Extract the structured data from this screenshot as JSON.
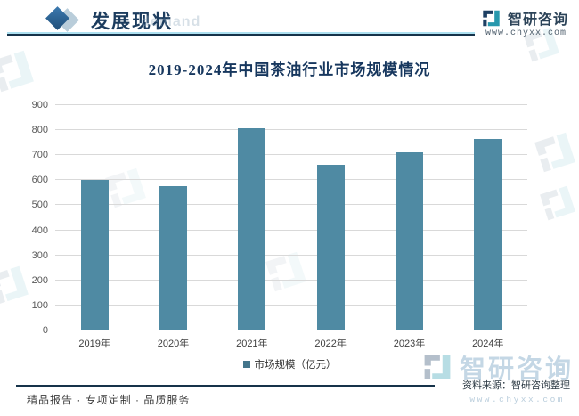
{
  "header": {
    "title": "发展现状",
    "watermark_text": "demand",
    "brand": {
      "name": "智研咨询",
      "url": "www.chyxx.com"
    }
  },
  "chart_data": {
    "type": "bar",
    "title": "2019-2024年中国茶油行业市场规模情况",
    "categories": [
      "2019年",
      "2020年",
      "2021年",
      "2022年",
      "2023年",
      "2024年"
    ],
    "series": [
      {
        "name": "市场规模（亿元）",
        "values": [
          600,
          578,
          808,
          660,
          710,
          765
        ]
      }
    ],
    "xlabel": "",
    "ylabel": "",
    "ylim": [
      0,
      900
    ],
    "ytick_interval": 100,
    "grid": true,
    "legend_position": "bottom",
    "bar_color": "#4f8aa3"
  },
  "footer": {
    "source": "资料来源：智研咨询整理",
    "tagline": "精品报告 · 专项定制 · 品质服务",
    "watermark_brand": "智研咨询",
    "watermark_url": "www.chyxx.com"
  },
  "colors": {
    "accent_dark": "#17375e",
    "bar": "#4f8aa3",
    "gridline": "#d9d9d9",
    "rule_light": "#ade0f0",
    "rule_dark": "#16334a"
  }
}
